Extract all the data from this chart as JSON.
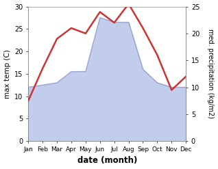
{
  "months": [
    "Jan",
    "Feb",
    "Mar",
    "Apr",
    "May",
    "Jun",
    "Jul",
    "Aug",
    "Sep",
    "Oct",
    "Nov",
    "Dec"
  ],
  "x": [
    0,
    1,
    2,
    3,
    4,
    5,
    6,
    7,
    8,
    9,
    10,
    11
  ],
  "temp": [
    12.0,
    12.5,
    13.0,
    15.5,
    15.5,
    27.5,
    26.5,
    26.5,
    16.0,
    13.0,
    12.0,
    12.0
  ],
  "precip": [
    7.5,
    13.5,
    19.0,
    21.0,
    20.0,
    24.0,
    22.0,
    25.5,
    21.0,
    16.0,
    9.5,
    12.0
  ],
  "temp_fill_color": "#b8c4e8",
  "temp_line_color": "#9aa8d0",
  "precip_color": "#cc3333",
  "ylim_left": [
    0,
    30
  ],
  "ylim_right": [
    0,
    25
  ],
  "yticks_left": [
    0,
    5,
    10,
    15,
    20,
    25,
    30
  ],
  "yticks_right": [
    0,
    5,
    10,
    15,
    20,
    25
  ],
  "xlabel": "date (month)",
  "ylabel_left": "max temp (C)",
  "ylabel_right": "med. precipitation (kg/m2)",
  "bg_color": "#ffffff",
  "figsize": [
    3.18,
    2.47
  ],
  "dpi": 100
}
